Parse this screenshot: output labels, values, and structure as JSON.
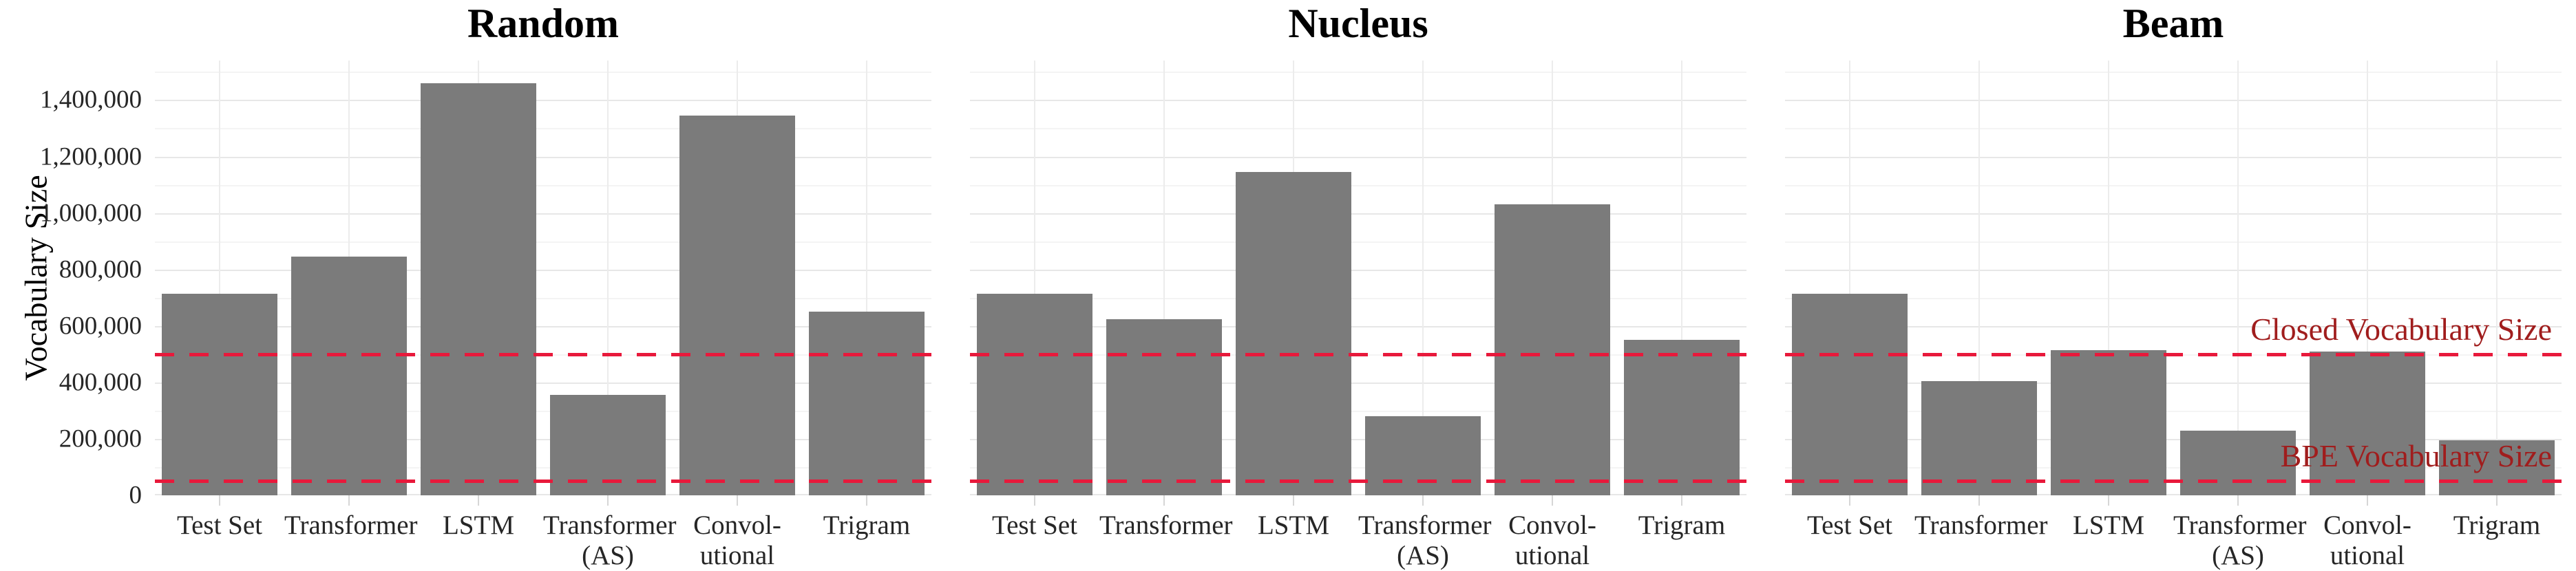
{
  "chart_data": {
    "type": "bar",
    "layout_hint": "three horizontally-faceted bar panels sharing one y axis, grid on (major + minor), no legend",
    "ylabel": "Vocabulary Size",
    "ylim": [
      0,
      1540000
    ],
    "ytick_step": 200000,
    "ytick_labels": [
      "0",
      "200,000",
      "400,000",
      "600,000",
      "800,000",
      "1,000,000",
      "1,200,000",
      "1,400,000"
    ],
    "categories": [
      "Test Set",
      "Transformer",
      "LSTM",
      "Transformer\n(AS)",
      "Convol-\nutional",
      "Trigram"
    ],
    "series": [
      {
        "name": "Random",
        "values": [
          715000,
          845000,
          1460000,
          355000,
          1345000,
          650000
        ]
      },
      {
        "name": "Nucleus",
        "values": [
          715000,
          625000,
          1145000,
          280000,
          1030000,
          550000
        ]
      },
      {
        "name": "Beam",
        "values": [
          715000,
          405000,
          515000,
          230000,
          510000,
          195000
        ]
      }
    ],
    "reference_lines": [
      {
        "label": "Closed Vocabulary Size",
        "value": 500000
      },
      {
        "label": "BPE Vocabulary Size",
        "value": 50000
      }
    ],
    "reference_labels_shown_on_panel": "Beam",
    "colors": {
      "bar": "#7b7b7b",
      "reference_line": "#e8193b",
      "annotation_text": "#a01d1d",
      "tick_text": "#262626",
      "title_text": "#000000"
    }
  }
}
